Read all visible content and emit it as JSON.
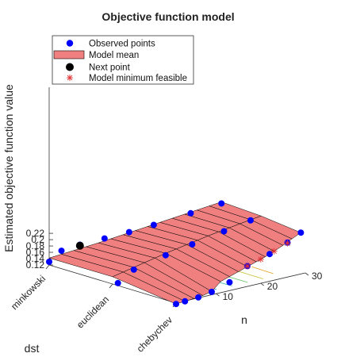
{
  "chart_data": {
    "type": "surface3d",
    "title": "Objective function model",
    "xlabel": "dst",
    "ylabel": "n",
    "zlabel": "Estimated objective function value",
    "x_categories": [
      "minkowski",
      "euclidean",
      "chebychev"
    ],
    "y_ticks": [
      10,
      20,
      30
    ],
    "z_ticks": [
      "0.12",
      "0.14",
      "0.16",
      "0.18",
      "0.2",
      "0.22"
    ],
    "ylim": [
      1,
      30
    ],
    "zlim": [
      0.12,
      0.235
    ],
    "legend": {
      "placement": "top-left",
      "entries": [
        {
          "label": "Observed points",
          "marker": "blue-dot"
        },
        {
          "label": "Model mean",
          "marker": "salmon-patch"
        },
        {
          "label": "Next point",
          "marker": "black-dot"
        },
        {
          "label": "Model minimum feasible",
          "marker": "red-asterisk"
        }
      ]
    },
    "surface": {
      "n_grid": [
        1,
        3,
        5,
        7,
        9,
        11,
        13,
        15,
        17,
        19,
        21,
        23,
        25,
        27,
        29
      ],
      "minkowski": [
        0.142,
        0.146,
        0.15,
        0.154,
        0.158,
        0.163,
        0.168,
        0.173,
        0.178,
        0.183,
        0.188,
        0.193,
        0.198,
        0.203,
        0.208
      ],
      "euclidean": [
        0.143,
        0.15,
        0.157,
        0.164,
        0.171,
        0.178,
        0.184,
        0.19,
        0.196,
        0.202,
        0.207,
        0.212,
        0.217,
        0.222,
        0.226
      ],
      "chebychev": [
        0.117,
        0.118,
        0.119,
        0.121,
        0.126,
        0.15,
        0.158,
        0.166,
        0.174,
        0.182,
        0.19,
        0.2,
        0.211,
        0.224,
        0.236
      ]
    },
    "observed_points": [
      {
        "dst": 0,
        "n": 1,
        "z": 0.13
      },
      {
        "dst": 0,
        "n": 3,
        "z": 0.157
      },
      {
        "dst": 0,
        "n": 6,
        "z": 0.164
      },
      {
        "dst": 0,
        "n": 10,
        "z": 0.168
      },
      {
        "dst": 0,
        "n": 14,
        "z": 0.172
      },
      {
        "dst": 0,
        "n": 18,
        "z": 0.179
      },
      {
        "dst": 0,
        "n": 24,
        "z": 0.192
      },
      {
        "dst": 0,
        "n": 29,
        "z": 0.203
      },
      {
        "dst": 1,
        "n": 2,
        "z": 0.119
      },
      {
        "dst": 1,
        "n": 5,
        "z": 0.15
      },
      {
        "dst": 1,
        "n": 11,
        "z": 0.172
      },
      {
        "dst": 1,
        "n": 16,
        "z": 0.187
      },
      {
        "dst": 1,
        "n": 22,
        "z": 0.205
      },
      {
        "dst": 1,
        "n": 27,
        "z": 0.22
      },
      {
        "dst": 2,
        "n": 1,
        "z": 0.117
      },
      {
        "dst": 2,
        "n": 3,
        "z": 0.118
      },
      {
        "dst": 2,
        "n": 6,
        "z": 0.119
      },
      {
        "dst": 2,
        "n": 9,
        "z": 0.125
      },
      {
        "dst": 2,
        "n": 13,
        "z": 0.14
      },
      {
        "dst": 2,
        "n": 17,
        "z": 0.176
      },
      {
        "dst": 2,
        "n": 22,
        "z": 0.195
      },
      {
        "dst": 2,
        "n": 26,
        "z": 0.216
      },
      {
        "dst": 2,
        "n": 29,
        "z": 0.236
      }
    ],
    "next_point": {
      "dst": 0,
      "n": 6,
      "z": 0.161
    },
    "model_minimum": [
      {
        "dst": 2,
        "n": 17,
        "z": 0.176
      },
      {
        "dst": 2,
        "n": 20,
        "z": 0.186
      },
      {
        "dst": 2,
        "n": 23,
        "z": 0.2
      },
      {
        "dst": 2,
        "n": 26,
        "z": 0.214
      }
    ],
    "grid": false
  },
  "colors": {
    "surface_face": "#f08080",
    "surface_edge": "#000000",
    "observed": "#0000ff",
    "next": "#000000",
    "minimum": "#e03030"
  }
}
